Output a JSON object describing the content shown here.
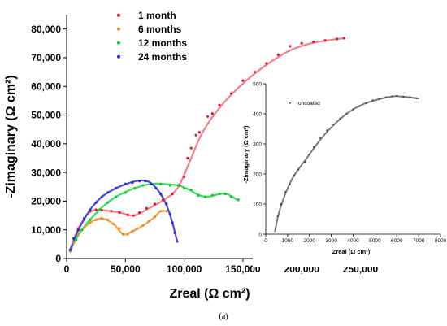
{
  "figure": {
    "caption": "(a)"
  },
  "chart_data": [
    {
      "type": "scatter",
      "xlabel": "Zreal (Ω  cm²)",
      "ylabel": "-Zimaginary (Ω  cm²)",
      "xlim": [
        0,
        260000
      ],
      "ylim": [
        0,
        85000
      ],
      "x_ticks": [
        0,
        50000,
        100000,
        150000,
        200000,
        250000
      ],
      "y_ticks": [
        0,
        10000,
        20000,
        30000,
        40000,
        50000,
        60000,
        70000,
        80000
      ],
      "x_tick_labels": [
        "0",
        "50,000",
        "100,000",
        "150,000",
        "200,000",
        "250,000"
      ],
      "y_tick_labels": [
        "0",
        "10,000",
        "20,000",
        "30,000",
        "40,000",
        "50,000",
        "60,000",
        "70,000",
        "80,000"
      ],
      "legend_position": "top-left",
      "series": [
        {
          "name": "1 month",
          "color": "#f4808a",
          "marker_color": "#e0182e",
          "points": [
            [
              3000,
              3000
            ],
            [
              6000,
              7000
            ],
            [
              10000,
              10500
            ],
            [
              15000,
              14000
            ],
            [
              20000,
              16500
            ],
            [
              25000,
              17000
            ],
            [
              30000,
              16800
            ],
            [
              38000,
              16500
            ],
            [
              45000,
              16000
            ],
            [
              52000,
              15200
            ],
            [
              57000,
              15000
            ],
            [
              62000,
              16000
            ],
            [
              68000,
              17500
            ],
            [
              75000,
              19000
            ],
            [
              82000,
              20500
            ],
            [
              90000,
              22500
            ],
            [
              96000,
              25500
            ],
            [
              100000,
              28500
            ],
            [
              103000,
              35000
            ],
            [
              106000,
              38500
            ],
            [
              110000,
              43000
            ],
            [
              113000,
              44000
            ],
            [
              120000,
              49500
            ],
            [
              124000,
              50500
            ],
            [
              130000,
              53500
            ],
            [
              140000,
              57500
            ],
            [
              150000,
              62000
            ],
            [
              160000,
              65000
            ],
            [
              170000,
              68000
            ],
            [
              180000,
              71000
            ],
            [
              190000,
              74000
            ],
            [
              200000,
              75000
            ],
            [
              210000,
              75500
            ],
            [
              220000,
              76000
            ],
            [
              230000,
              76500
            ],
            [
              236000,
              76800
            ]
          ],
          "curve": [
            [
              3000,
              3000
            ],
            [
              10000,
              10500
            ],
            [
              20000,
              16200
            ],
            [
              30000,
              16800
            ],
            [
              45000,
              16000
            ],
            [
              57000,
              15000
            ],
            [
              70000,
              17500
            ],
            [
              85000,
              21000
            ],
            [
              95000,
              25000
            ],
            [
              105000,
              34000
            ],
            [
              115000,
              43500
            ],
            [
              130000,
              52500
            ],
            [
              150000,
              61000
            ],
            [
              170000,
              67500
            ],
            [
              190000,
              72500
            ],
            [
              210000,
              75200
            ],
            [
              236000,
              76800
            ]
          ]
        },
        {
          "name": "6 months",
          "color": "#f5a14a",
          "marker_color": "#f08a1c",
          "points": [
            [
              3000,
              2500
            ],
            [
              6000,
              5500
            ],
            [
              10000,
              8500
            ],
            [
              15000,
              11000
            ],
            [
              20000,
              12500
            ],
            [
              25000,
              13500
            ],
            [
              30000,
              14000
            ],
            [
              35000,
              13500
            ],
            [
              40000,
              12000
            ],
            [
              45000,
              10500
            ],
            [
              48000,
              8500
            ],
            [
              52000,
              8500
            ],
            [
              56000,
              9500
            ],
            [
              60000,
              10500
            ],
            [
              65000,
              11500
            ],
            [
              70000,
              13000
            ],
            [
              75000,
              14500
            ],
            [
              80000,
              16500
            ],
            [
              85000,
              16500
            ]
          ],
          "curve": [
            [
              3000,
              2500
            ],
            [
              10000,
              8500
            ],
            [
              20000,
              12500
            ],
            [
              30000,
              14000
            ],
            [
              40000,
              12000
            ],
            [
              48000,
              8500
            ],
            [
              55000,
              9300
            ],
            [
              65000,
              11500
            ],
            [
              75000,
              14500
            ],
            [
              80000,
              16500
            ],
            [
              85000,
              16500
            ]
          ]
        },
        {
          "name": "12 months",
          "color": "#33e05a",
          "marker_color": "#10c832",
          "points": [
            [
              3000,
              3000
            ],
            [
              8000,
              6500
            ],
            [
              13000,
              10000
            ],
            [
              20000,
              13500
            ],
            [
              28000,
              17000
            ],
            [
              35000,
              19500
            ],
            [
              42000,
              21500
            ],
            [
              50000,
              23000
            ],
            [
              58000,
              24500
            ],
            [
              65000,
              25500
            ],
            [
              72000,
              26000
            ],
            [
              80000,
              26000
            ],
            [
              88000,
              25500
            ],
            [
              95000,
              25500
            ],
            [
              100000,
              24500
            ],
            [
              106000,
              24000
            ],
            [
              112000,
              22000
            ],
            [
              118000,
              21500
            ],
            [
              124000,
              22000
            ],
            [
              130000,
              22500
            ],
            [
              135000,
              22500
            ],
            [
              140000,
              21500
            ],
            [
              146000,
              20500
            ]
          ],
          "curve": [
            [
              3000,
              3000
            ],
            [
              13000,
              10000
            ],
            [
              28000,
              17000
            ],
            [
              42000,
              21500
            ],
            [
              58000,
              24500
            ],
            [
              72000,
              26000
            ],
            [
              85000,
              25900
            ],
            [
              96000,
              25400
            ],
            [
              104000,
              24000
            ],
            [
              112000,
              22200
            ],
            [
              120000,
              21500
            ],
            [
              130000,
              22500
            ],
            [
              137000,
              22400
            ],
            [
              146000,
              20200
            ]
          ]
        },
        {
          "name": "24 months",
          "color": "#4a4ae0",
          "marker_color": "#2f2fc8",
          "points": [
            [
              3000,
              3000
            ],
            [
              6000,
              7000
            ],
            [
              10000,
              10000
            ],
            [
              15000,
              14000
            ],
            [
              20000,
              17000
            ],
            [
              25000,
              19500
            ],
            [
              30000,
              21500
            ],
            [
              35000,
              23000
            ],
            [
              42000,
              24500
            ],
            [
              50000,
              26000
            ],
            [
              56000,
              26500
            ],
            [
              62000,
              27000
            ],
            [
              67000,
              27000
            ],
            [
              72000,
              26000
            ],
            [
              76000,
              24500
            ],
            [
              80000,
              22500
            ],
            [
              85000,
              19000
            ],
            [
              88000,
              15500
            ],
            [
              90000,
              12500
            ],
            [
              92000,
              9000
            ],
            [
              94000,
              6000
            ]
          ],
          "curve": [
            [
              3000,
              3000
            ],
            [
              10000,
              10000
            ],
            [
              20000,
              17000
            ],
            [
              30000,
              21500
            ],
            [
              42000,
              24500
            ],
            [
              56000,
              26700
            ],
            [
              65000,
              27200
            ],
            [
              72000,
              26200
            ],
            [
              80000,
              22500
            ],
            [
              86000,
              17500
            ],
            [
              90000,
              12500
            ],
            [
              94000,
              6000
            ]
          ]
        }
      ]
    },
    {
      "type": "scatter",
      "xlabel": "Zreal (Ω  cm²)",
      "ylabel": "-Zimaginary (Ω  cm²)",
      "xlim": [
        0,
        8000
      ],
      "ylim": [
        0,
        500
      ],
      "x_ticks": [
        0,
        1000,
        2000,
        3000,
        4000,
        5000,
        6000,
        7000,
        8000
      ],
      "y_ticks": [
        0,
        100,
        200,
        300,
        400,
        500
      ],
      "x_tick_labels": [
        "0",
        "1000",
        "2000",
        "3000",
        "4000",
        "5000",
        "6000",
        "7000",
        "8000"
      ],
      "y_tick_labels": [
        "0",
        "100",
        "200",
        "300",
        "400",
        "500"
      ],
      "legend_position": "top-left",
      "series": [
        {
          "name": "uncoated",
          "color": "#7a7a7a",
          "marker_color": "#404040",
          "points": [
            [
              450,
              20
            ],
            [
              550,
              60
            ],
            [
              700,
              100
            ],
            [
              900,
              140
            ],
            [
              1100,
              165
            ],
            [
              1300,
              195
            ],
            [
              1500,
              215
            ],
            [
              1800,
              240
            ],
            [
              2000,
              265
            ],
            [
              2200,
              290
            ],
            [
              2500,
              320
            ],
            [
              2800,
              345
            ],
            [
              3100,
              365
            ],
            [
              3400,
              385
            ],
            [
              3700,
              400
            ],
            [
              4000,
              415
            ],
            [
              4300,
              425
            ],
            [
              4600,
              435
            ],
            [
              4900,
              445
            ],
            [
              5200,
              450
            ],
            [
              5500,
              455
            ],
            [
              5800,
              458
            ],
            [
              6000,
              460
            ],
            [
              6300,
              457
            ],
            [
              6600,
              455
            ],
            [
              6900,
              452
            ]
          ],
          "curve": [
            [
              420,
              10
            ],
            [
              600,
              70
            ],
            [
              900,
              135
            ],
            [
              1300,
              195
            ],
            [
              1800,
              245
            ],
            [
              2400,
              305
            ],
            [
              3000,
              355
            ],
            [
              3700,
              400
            ],
            [
              4400,
              430
            ],
            [
              5100,
              447
            ],
            [
              5800,
              458
            ],
            [
              6300,
              457
            ],
            [
              7000,
              451
            ]
          ]
        }
      ]
    }
  ]
}
